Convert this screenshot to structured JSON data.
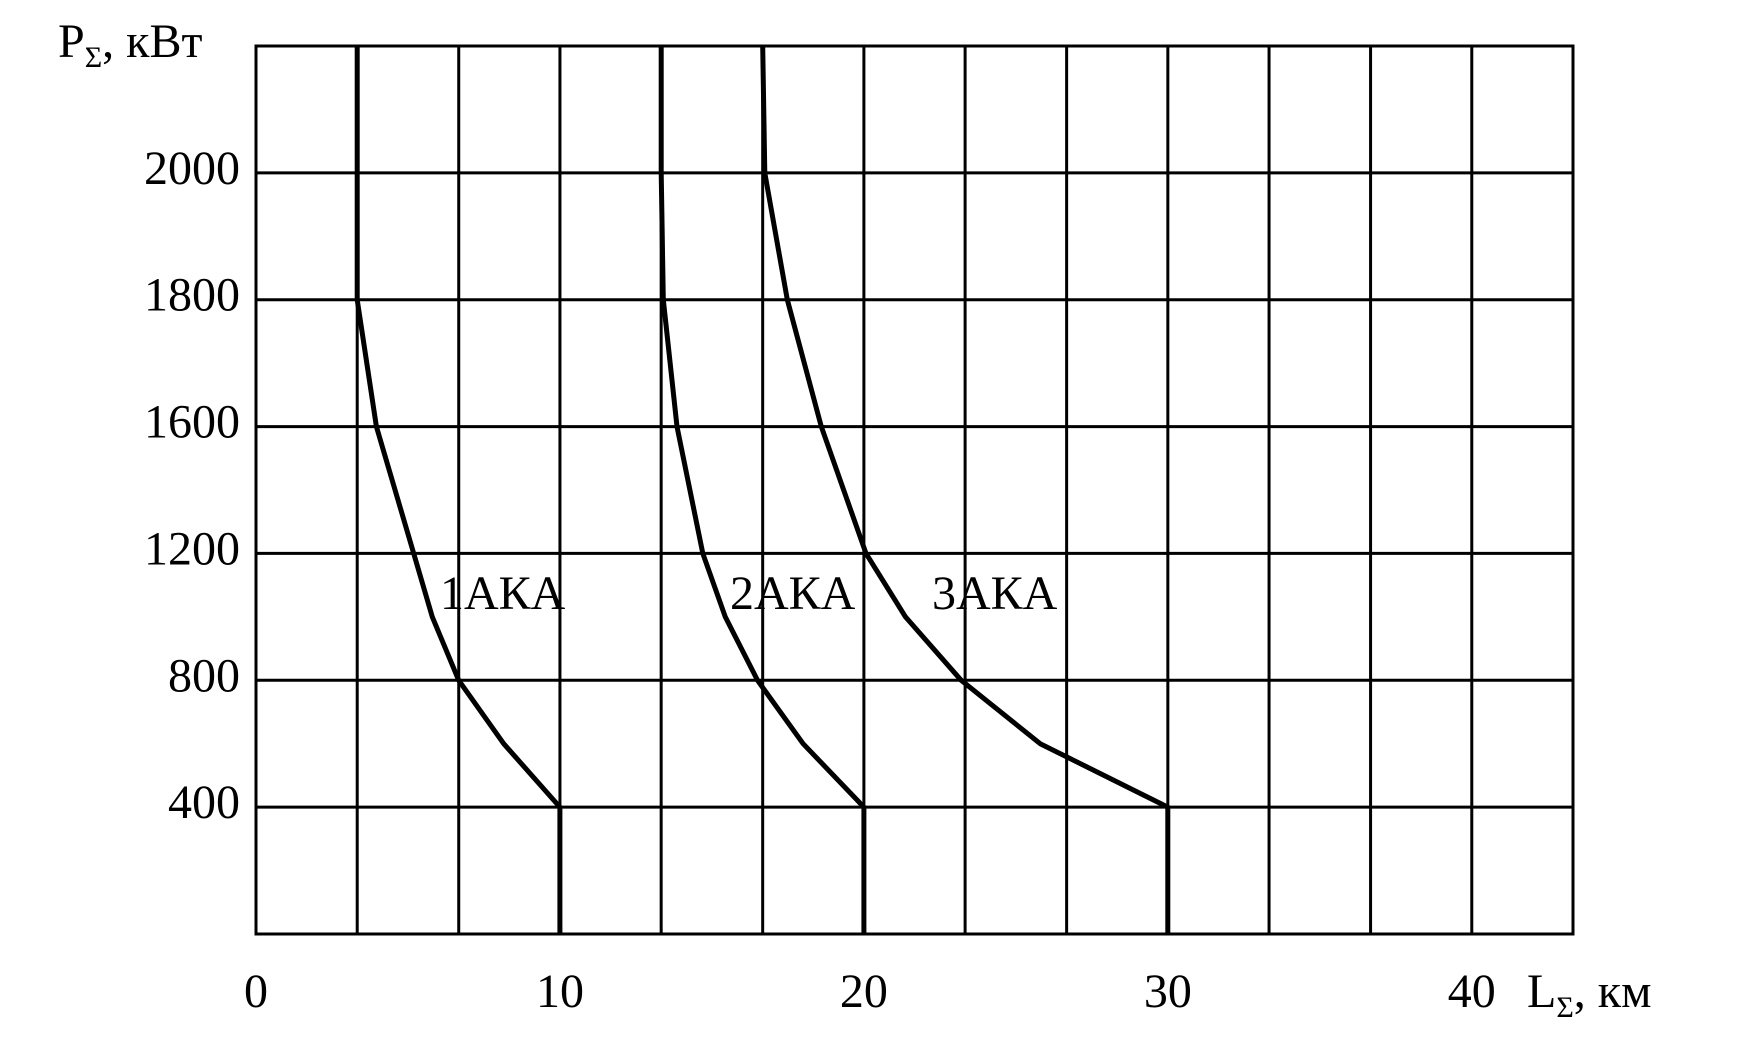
{
  "chart_data": {
    "type": "line",
    "x_label": {
      "main": "L",
      "sub": "Σ",
      "rest": ", км"
    },
    "y_label": {
      "main": "P",
      "sub": "Σ",
      "rest": ", кВт"
    },
    "xlim": [
      0,
      43.33
    ],
    "xticks": [
      0,
      10,
      20,
      30,
      40
    ],
    "xgrid": [
      3.33,
      6.67,
      10,
      13.33,
      16.67,
      20,
      23.33,
      26.67,
      30,
      33.33,
      36.67,
      40
    ],
    "ylim": [
      0,
      2200
    ],
    "yticks": [
      400,
      800,
      1200,
      1600,
      1800,
      2000
    ],
    "grid": true,
    "color": "#000000",
    "series": [
      {
        "name": "1АКА",
        "x": [
          3.33,
          3.33,
          3.33,
          3.96,
          5.19,
          5.8,
          6.67,
          8.15,
          10,
          10
        ],
        "values": [
          2200,
          2000,
          1800,
          1600,
          1200,
          1000,
          800,
          600,
          400,
          0
        ]
      },
      {
        "name": "2АКА",
        "x": [
          13.33,
          13.33,
          13.4,
          13.85,
          14.7,
          15.44,
          16.5,
          18.0,
          20,
          20
        ],
        "values": [
          2200,
          2000,
          1800,
          1600,
          1200,
          1000,
          800,
          600,
          400,
          0
        ]
      },
      {
        "name": "3АКА",
        "x": [
          16.67,
          16.74,
          17.48,
          18.6,
          20.07,
          21.37,
          23.2,
          25.8,
          30,
          30
        ],
        "values": [
          2200,
          2000,
          1800,
          1600,
          1200,
          1000,
          800,
          600,
          400,
          0
        ]
      }
    ]
  }
}
